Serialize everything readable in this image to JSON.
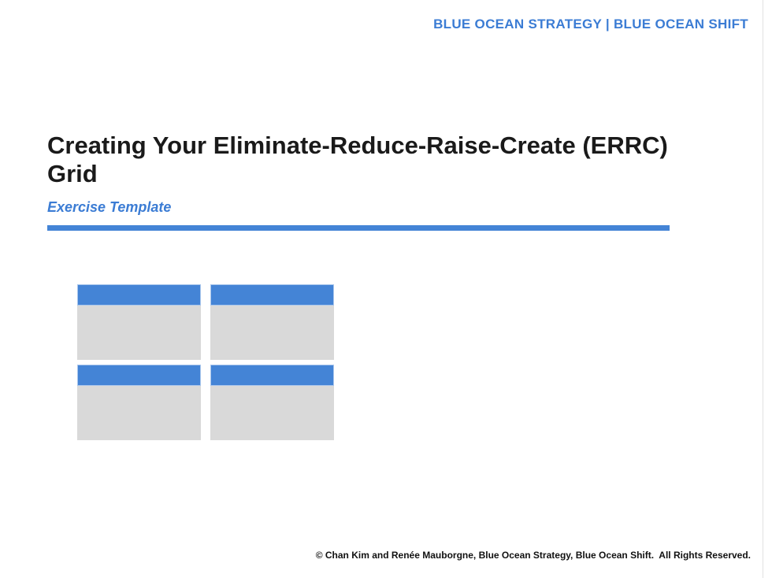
{
  "brand": {
    "header_label": "BLUE OCEAN STRATEGY | BLUE OCEAN SHIFT"
  },
  "title": {
    "heading": "Creating Your Eliminate-Reduce-Raise-Create (ERRC) Grid",
    "subtitle": "Exercise Template"
  },
  "errc_grid": {
    "rows": 2,
    "cols": 2,
    "cells": [
      {
        "header_text": "",
        "body_text": ""
      },
      {
        "header_text": "",
        "body_text": ""
      },
      {
        "header_text": "",
        "body_text": ""
      },
      {
        "header_text": "",
        "body_text": ""
      }
    ]
  },
  "footer": {
    "copyright": "© Chan Kim and Renée Mauborgne, Blue Ocean Strategy, Blue Ocean Shift.  All Rights Reserved."
  },
  "colors": {
    "accent_blue": "#4484D6",
    "text_blue": "#3B7CD4",
    "cell_gray": "#D9D9D9",
    "title_black": "#1A1A1A"
  }
}
